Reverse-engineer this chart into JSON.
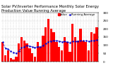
{
  "title": "Solar PV/Inverter Performance Monthly Solar Energy Production Value Running Average",
  "bar_values": [
    120,
    40,
    70,
    20,
    15,
    30,
    110,
    150,
    130,
    110,
    80,
    50,
    30,
    120,
    90,
    160,
    210,
    260,
    200,
    180,
    120,
    90,
    70,
    150,
    120,
    60,
    230,
    150,
    130,
    200,
    130,
    120,
    70,
    180,
    170,
    210
  ],
  "running_avg": [
    120,
    80,
    77,
    63,
    55,
    51,
    65,
    84,
    90,
    98,
    95,
    90,
    87,
    91,
    91,
    98,
    110,
    122,
    126,
    129,
    127,
    125,
    122,
    124,
    122,
    117,
    124,
    124,
    124,
    128,
    127,
    127,
    124,
    127,
    129,
    132
  ],
  "bar_color": "#ff0000",
  "avg_color": "#0000cc",
  "background_color": "#ffffff",
  "grid_color": "#aaaaaa",
  "ylim": [
    0,
    300
  ],
  "ytick_right_labels": [
    "0",
    "50",
    "100",
    "150",
    "200",
    "250",
    "300"
  ],
  "ytick_right_values": [
    0,
    50,
    100,
    150,
    200,
    250,
    300
  ],
  "legend_bar": "Value",
  "legend_avg": "Running Average",
  "title_fontsize": 3.8,
  "tick_fontsize": 3.0,
  "legend_fontsize": 2.8
}
